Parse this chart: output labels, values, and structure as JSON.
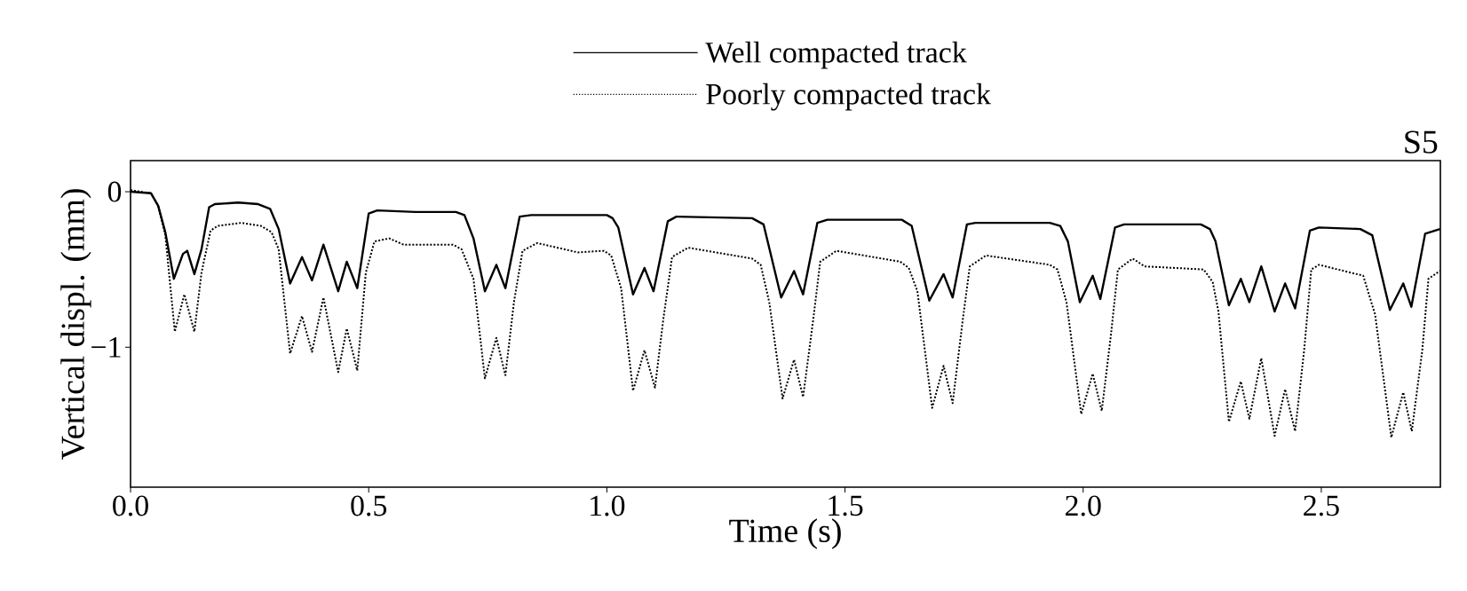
{
  "chart_data": {
    "type": "line",
    "title": "S5",
    "xlabel": "Time (s)",
    "ylabel": "Vertical displ. (mm)",
    "legend": "top",
    "xlim": [
      0,
      2.75
    ],
    "ylim": [
      -1.9,
      0.2
    ],
    "xticks": [
      {
        "value": 0,
        "label": "0.0"
      },
      {
        "value": 0.5,
        "label": "0.5"
      },
      {
        "value": 1,
        "label": "1.0"
      },
      {
        "value": 1.5,
        "label": "1.5"
      },
      {
        "value": 2,
        "label": "2.0"
      },
      {
        "value": 2.5,
        "label": "2.5"
      }
    ],
    "yticks": [
      0,
      {
        "value": -1,
        "label": "−1"
      }
    ],
    "series": [
      {
        "name": "Well compacted track",
        "color": "#000000",
        "line_style": "solid",
        "x": [
          0,
          0.043,
          0.058,
          0.073,
          0.091,
          0.11,
          0.119,
          0.134,
          0.149,
          0.165,
          0.177,
          0.226,
          0.268,
          0.293,
          0.311,
          0.335,
          0.36,
          0.381,
          0.405,
          0.436,
          0.454,
          0.476,
          0.5,
          0.518,
          0.598,
          0.683,
          0.701,
          0.72,
          0.744,
          0.768,
          0.787,
          0.817,
          0.841,
          0.939,
          1.0,
          1.012,
          1.024,
          1.055,
          1.079,
          1.098,
          1.128,
          1.146,
          1.305,
          1.329,
          1.366,
          1.393,
          1.412,
          1.442,
          1.463,
          1.619,
          1.64,
          1.677,
          1.707,
          1.726,
          1.756,
          1.774,
          1.854,
          1.93,
          1.952,
          1.968,
          1.993,
          2.02,
          2.036,
          2.067,
          2.086,
          2.247,
          2.266,
          2.278,
          2.306,
          2.331,
          2.349,
          2.374,
          2.402,
          2.424,
          2.445,
          2.476,
          2.495,
          2.582,
          2.607,
          2.644,
          2.672,
          2.689,
          2.718,
          2.749
        ],
        "values": [
          0,
          -0.01,
          -0.09,
          -0.26,
          -0.56,
          -0.4,
          -0.38,
          -0.53,
          -0.37,
          -0.1,
          -0.08,
          -0.07,
          -0.08,
          -0.11,
          -0.24,
          -0.59,
          -0.42,
          -0.57,
          -0.34,
          -0.64,
          -0.45,
          -0.62,
          -0.14,
          -0.12,
          -0.13,
          -0.13,
          -0.15,
          -0.3,
          -0.64,
          -0.47,
          -0.62,
          -0.16,
          -0.15,
          -0.15,
          -0.15,
          -0.17,
          -0.23,
          -0.66,
          -0.49,
          -0.64,
          -0.19,
          -0.16,
          -0.17,
          -0.21,
          -0.68,
          -0.51,
          -0.66,
          -0.2,
          -0.18,
          -0.18,
          -0.22,
          -0.7,
          -0.53,
          -0.68,
          -0.21,
          -0.2,
          -0.2,
          -0.2,
          -0.22,
          -0.32,
          -0.71,
          -0.54,
          -0.69,
          -0.23,
          -0.21,
          -0.21,
          -0.24,
          -0.32,
          -0.73,
          -0.56,
          -0.71,
          -0.48,
          -0.77,
          -0.59,
          -0.75,
          -0.25,
          -0.23,
          -0.24,
          -0.28,
          -0.76,
          -0.59,
          -0.74,
          -0.27,
          -0.24
        ]
      },
      {
        "name": "Poorly compacted track",
        "color": "#000000",
        "line_style": "dotted",
        "x": [
          0,
          0.043,
          0.058,
          0.073,
          0.093,
          0.113,
          0.134,
          0.149,
          0.168,
          0.183,
          0.232,
          0.274,
          0.296,
          0.311,
          0.335,
          0.36,
          0.381,
          0.405,
          0.436,
          0.454,
          0.476,
          0.494,
          0.512,
          0.543,
          0.573,
          0.677,
          0.695,
          0.72,
          0.744,
          0.768,
          0.787,
          0.805,
          0.823,
          0.854,
          0.939,
          0.994,
          1.009,
          1.03,
          1.055,
          1.079,
          1.101,
          1.119,
          1.137,
          1.171,
          1.305,
          1.323,
          1.341,
          1.369,
          1.393,
          1.412,
          1.433,
          1.448,
          1.482,
          1.616,
          1.634,
          1.652,
          1.683,
          1.707,
          1.726,
          1.747,
          1.762,
          1.796,
          1.93,
          1.946,
          1.965,
          1.996,
          2.02,
          2.039,
          2.058,
          2.073,
          2.104,
          2.129,
          2.253,
          2.272,
          2.284,
          2.306,
          2.331,
          2.349,
          2.374,
          2.402,
          2.424,
          2.445,
          2.464,
          2.479,
          2.495,
          2.588,
          2.613,
          2.647,
          2.672,
          2.69,
          2.712,
          2.725,
          2.749
        ],
        "values": [
          0.01,
          -0.01,
          -0.09,
          -0.28,
          -0.9,
          -0.66,
          -0.9,
          -0.52,
          -0.25,
          -0.22,
          -0.2,
          -0.22,
          -0.26,
          -0.37,
          -1.04,
          -0.8,
          -1.03,
          -0.68,
          -1.16,
          -0.88,
          -1.15,
          -0.52,
          -0.32,
          -0.3,
          -0.34,
          -0.34,
          -0.37,
          -0.56,
          -1.2,
          -0.94,
          -1.18,
          -0.71,
          -0.38,
          -0.33,
          -0.39,
          -0.38,
          -0.41,
          -0.62,
          -1.28,
          -1.02,
          -1.26,
          -0.81,
          -0.42,
          -0.36,
          -0.43,
          -0.47,
          -0.71,
          -1.33,
          -1.08,
          -1.32,
          -0.83,
          -0.45,
          -0.38,
          -0.45,
          -0.49,
          -0.64,
          -1.39,
          -1.12,
          -1.36,
          -0.83,
          -0.48,
          -0.41,
          -0.47,
          -0.5,
          -0.71,
          -1.43,
          -1.17,
          -1.41,
          -0.93,
          -0.5,
          -0.43,
          -0.48,
          -0.5,
          -0.58,
          -0.77,
          -1.48,
          -1.22,
          -1.46,
          -1.07,
          -1.57,
          -1.27,
          -1.54,
          -1.02,
          -0.5,
          -0.47,
          -0.54,
          -0.79,
          -1.58,
          -1.29,
          -1.54,
          -1.02,
          -0.56,
          -0.51
        ]
      }
    ]
  }
}
